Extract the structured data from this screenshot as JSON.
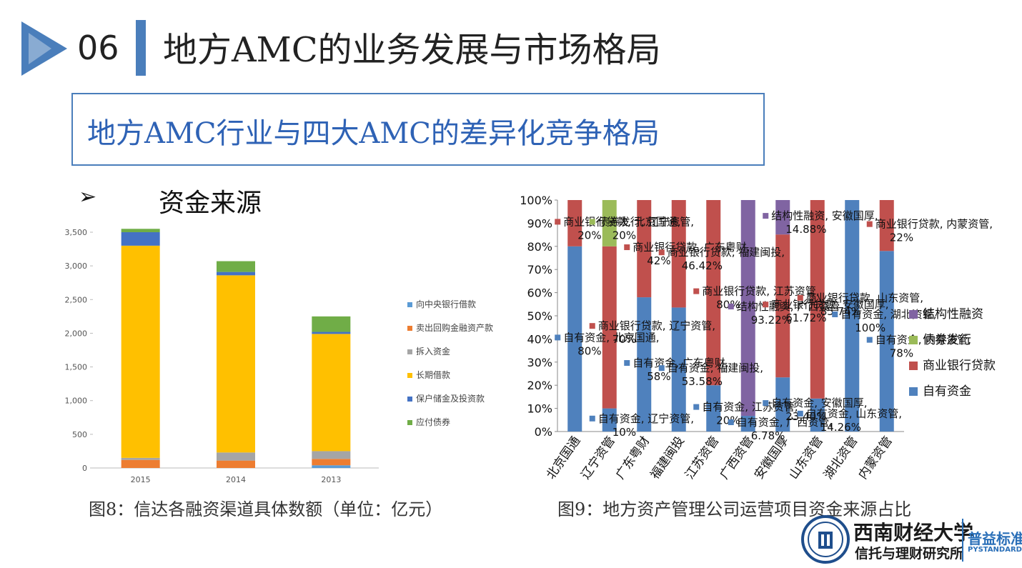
{
  "slide": {
    "number": "06",
    "title": "地方AMC的业务发展与市场格局",
    "subtitle": "地方AMC行业与四大AMC的差异化竞争格局",
    "bullet": "➢",
    "section_heading": "资金来源"
  },
  "captions": {
    "left": "图8：信达各融资渠道具体数额（单位：亿元）",
    "right": "图9：地方资产管理公司运营项目资金来源占比"
  },
  "logo": {
    "university": "西南财经大学",
    "institute": "信托与理财研究所",
    "brand": "普益标准",
    "brand_en": "PYSTANDARD"
  },
  "chart_data": [
    {
      "type": "bar",
      "stacked": true,
      "categories": [
        "2015",
        "2014",
        "2013"
      ],
      "ylim": [
        0,
        3500
      ],
      "yticks": [
        "0",
        "500",
        "1,000",
        "1,500",
        "2,000",
        "2,500",
        "3,000",
        "3,500"
      ],
      "ytick_values": [
        0,
        500,
        1000,
        1500,
        2000,
        2500,
        3000,
        3500
      ],
      "grid": false,
      "legend_position": "right",
      "series": [
        {
          "name": "向中央银行借款",
          "color": "#5b9bd5",
          "values": [
            0,
            0,
            40
          ]
        },
        {
          "name": "卖出回购金融资产款",
          "color": "#ed7d31",
          "values": [
            120,
            110,
            95
          ]
        },
        {
          "name": "拆入资金",
          "color": "#a5a5a5",
          "values": [
            30,
            120,
            115
          ]
        },
        {
          "name": "长期借款",
          "color": "#ffc000",
          "values": [
            3150,
            2630,
            1740
          ]
        },
        {
          "name": "保户储金及投资款",
          "color": "#4472c4",
          "values": [
            200,
            50,
            30
          ]
        },
        {
          "name": "应付债券",
          "color": "#70ad47",
          "values": [
            50,
            160,
            230
          ]
        }
      ]
    },
    {
      "type": "bar",
      "stacked": true,
      "percent": true,
      "categories": [
        "北京国通",
        "辽宁资管",
        "广东粤财",
        "福建闽投",
        "江苏资管",
        "广西资管",
        "安徽国厚",
        "山东资管",
        "湖北资管",
        "内蒙资管"
      ],
      "ylim": [
        0,
        100
      ],
      "yticks": [
        "0%",
        "10%",
        "20%",
        "30%",
        "40%",
        "50%",
        "60%",
        "70%",
        "80%",
        "90%",
        "100%"
      ],
      "ytick_values": [
        0,
        10,
        20,
        30,
        40,
        50,
        60,
        70,
        80,
        90,
        100
      ],
      "grid": false,
      "legend_position": "right",
      "series": [
        {
          "name": "自有资金",
          "color": "#4f81bd",
          "values": [
            80,
            10,
            58,
            53.58,
            20,
            6.78,
            23.4,
            14.26,
            100,
            78
          ]
        },
        {
          "name": "商业银行贷款",
          "color": "#c0504d",
          "values": [
            20,
            70,
            42,
            46.42,
            80,
            0,
            61.72,
            85.74,
            0,
            22
          ]
        },
        {
          "name": "债券发行",
          "color": "#9bbb59",
          "values": [
            0,
            20,
            0,
            0,
            0,
            0,
            0,
            0,
            0,
            0
          ]
        },
        {
          "name": "结构性融资",
          "color": "#8064a2",
          "values": [
            0,
            0,
            0,
            0,
            0,
            93.22,
            14.88,
            0,
            0,
            0
          ]
        }
      ],
      "data_labels": [
        "自有资金, 北京国通, 80%",
        "商业银行贷款, 北京国通, 20%",
        "自有资金, 辽宁资管, 10%",
        "商业银行贷款, 辽宁资管, 70%",
        "债券发行, 辽宁资管, 20%",
        "自有资金, 广东粤财, 58%",
        "商业银行贷款, 广东粤财, 42%",
        "自有资金, 福建闽投, 53.58%",
        "商业银行贷款, 福建闽投, 46.42%",
        "自有资金, 江苏资管, 20%",
        "商业银行贷款, 江苏资管, 80%",
        "自有资金, 广西资管, 6.78%",
        "结构性融资, 广西资管, 93.22%",
        "自有资金, 安徽国厚, 23.40%",
        "商业银行贷款, 安徽国厚, 61.72%",
        "结构性融资, 安徽国厚, 14.88%",
        "自有资金, 山东资管, 14.26%",
        "商业银行贷款, 山东资管, 85.74%",
        "自有资金, 湖北资管, 100%",
        "自有资金, 内蒙资管, 78%",
        "商业银行贷款, 内蒙资管, 22%"
      ]
    }
  ]
}
